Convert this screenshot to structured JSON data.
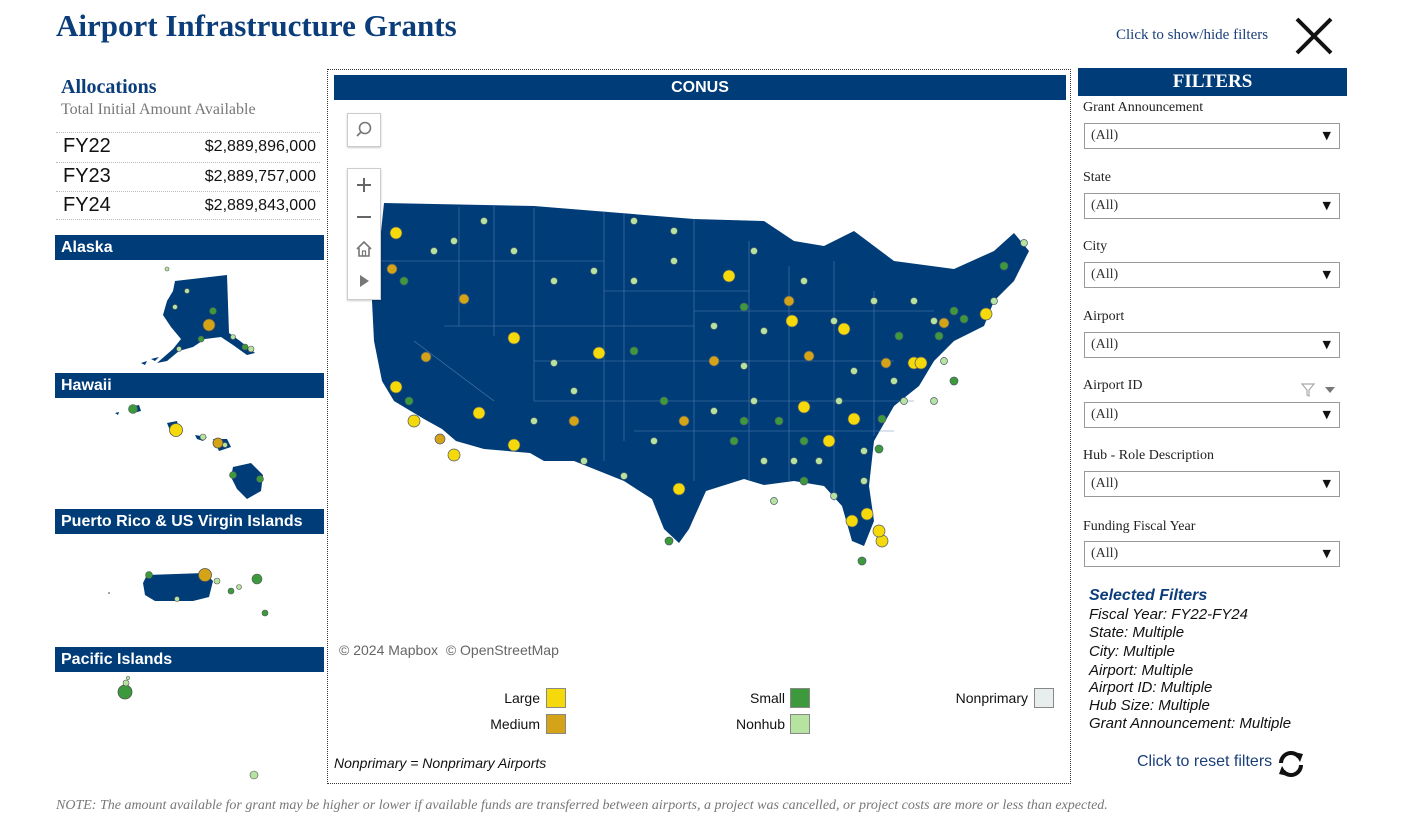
{
  "header": {
    "title": "Airport Infrastructure Grants",
    "toggle_filters_label": "Click to show/hide filters",
    "close_icon": "close-icon"
  },
  "allocations": {
    "title": "Allocations",
    "subtitle": "Total Initial Amount Available",
    "rows": [
      {
        "fy": "FY22",
        "amount": "$2,889,896,000"
      },
      {
        "fy": "FY23",
        "amount": "$2,889,757,000"
      },
      {
        "fy": "FY24",
        "amount": "$2,889,843,000"
      }
    ]
  },
  "regions": {
    "alaska": "Alaska",
    "hawaii": "Hawaii",
    "puerto_rico": "Puerto Rico & US Virgin Islands",
    "pacific": "Pacific Islands",
    "conus": "CONUS"
  },
  "map": {
    "attribution_mapbox": "© 2024 Mapbox",
    "attribution_osm": "© OpenStreetMap",
    "tools": [
      "search-icon",
      "zoom-in-icon",
      "zoom-out-icon",
      "home-icon",
      "play-icon"
    ],
    "colors": {
      "land": "#003c78",
      "large": "#f5d90a",
      "medium": "#d4a317",
      "small": "#3c9a3c",
      "nonhub": "#b6e3a0",
      "nonprimary": "#e8eeee"
    }
  },
  "legend": {
    "items": [
      {
        "label": "Large",
        "color": "#f5d90a"
      },
      {
        "label": "Medium",
        "color": "#d4a317"
      },
      {
        "label": "Small",
        "color": "#3c9a3c"
      },
      {
        "label": "Nonhub",
        "color": "#b6e3a0"
      },
      {
        "label": "Nonprimary",
        "color": "#e8eeee"
      }
    ],
    "note": "Nonprimary = Nonprimary Airports"
  },
  "filters": {
    "title": "FILTERS",
    "fields": [
      {
        "label": "Grant Announcement",
        "value": "(All)"
      },
      {
        "label": "State",
        "value": "(All)"
      },
      {
        "label": "City",
        "value": "(All)"
      },
      {
        "label": "Airport",
        "value": "(All)"
      },
      {
        "label": "Airport ID",
        "value": "(All)"
      },
      {
        "label": "Hub - Role Description",
        "value": "(All)"
      },
      {
        "label": "Funding Fiscal Year",
        "value": "(All)"
      }
    ],
    "selected_title": "Selected Filters",
    "selected": [
      "Fiscal Year: FY22-FY24",
      "State: Multiple",
      "City: Multiple",
      "Airport: Multiple",
      "Airport ID: Multiple",
      "Hub Size: Multiple",
      "Grant Announcement: Multiple"
    ],
    "reset_label": "Click to reset filters"
  },
  "note": "NOTE: The amount available for grant may be higher or lower if available funds are transferred between airports, a project was cancelled, or project costs are more or less than expected."
}
